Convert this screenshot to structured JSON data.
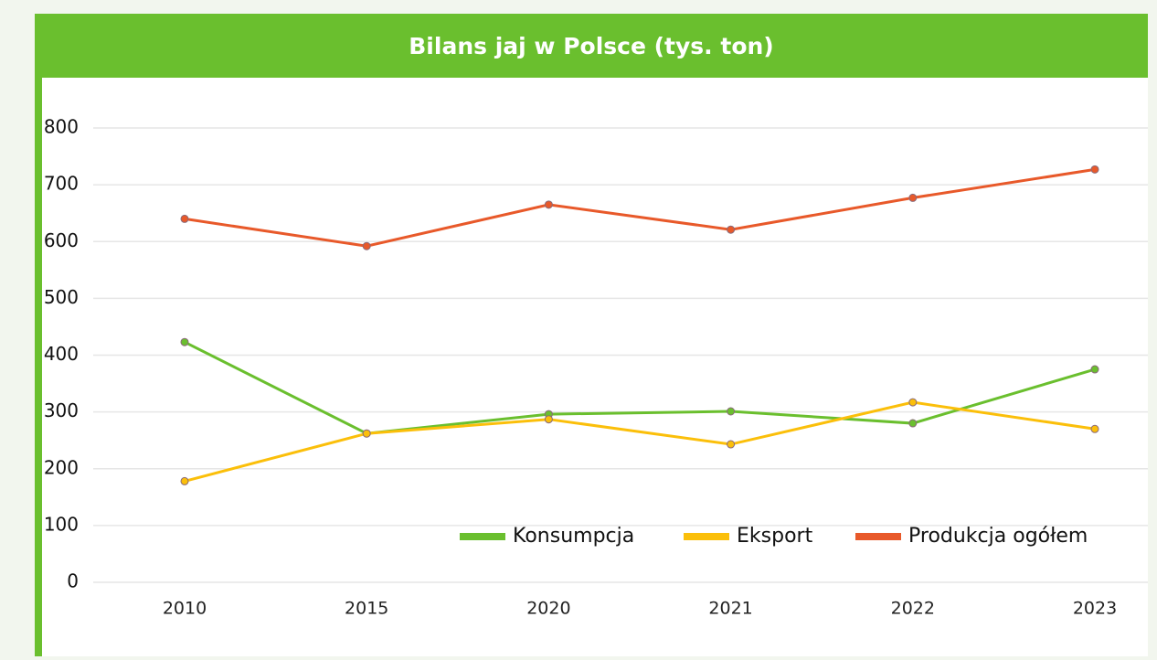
{
  "chart_data": {
    "type": "line",
    "title": "Bilans jaj w Polsce (tys. ton)",
    "categories": [
      "2010",
      "2015",
      "2020",
      "2021",
      "2022",
      "2023"
    ],
    "series": [
      {
        "name": "Konsumpcja",
        "color": "#6abf2e",
        "values": [
          423,
          262,
          296,
          301,
          280,
          375
        ]
      },
      {
        "name": "Eksport",
        "color": "#fbbf0a",
        "values": [
          178,
          262,
          287,
          243,
          317,
          270
        ]
      },
      {
        "name": "Produkcja ogółem",
        "color": "#e8592a",
        "values": [
          640,
          592,
          665,
          621,
          677,
          727
        ]
      }
    ],
    "ylim": [
      0,
      800
    ],
    "yticks": [
      0,
      100,
      200,
      300,
      400,
      500,
      600,
      700,
      800
    ],
    "grid": true,
    "legend": "bottom-right"
  }
}
